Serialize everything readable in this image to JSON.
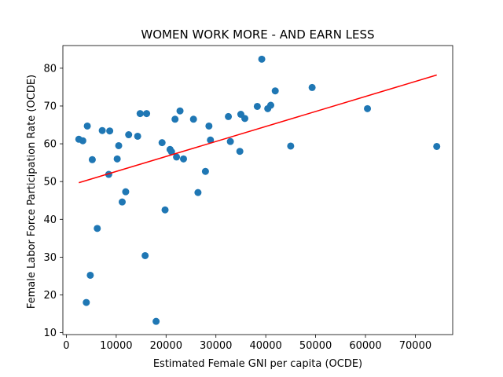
{
  "chart_data": {
    "type": "scatter",
    "title": "WOMEN WORK MORE - AND EARN LESS",
    "xlabel": "Estimated Female GNI per capita (OCDE)",
    "ylabel": "Female Labor Force Participation Rate (OCDE)",
    "xlim": [
      -700,
      77500
    ],
    "ylim": [
      9.5,
      86
    ],
    "xticks": [
      0,
      10000,
      20000,
      30000,
      40000,
      50000,
      60000,
      70000
    ],
    "yticks": [
      10,
      20,
      30,
      40,
      50,
      60,
      70,
      80
    ],
    "grid": false,
    "series": [
      {
        "type": "scatter",
        "color": "#1f77b4",
        "x": [
          2500,
          3300,
          4200,
          4800,
          5200,
          6200,
          7200,
          8500,
          8700,
          10200,
          10500,
          11200,
          11900,
          12500,
          14300,
          14800,
          15800,
          16100,
          18000,
          19200,
          19800,
          20800,
          21100,
          21800,
          22100,
          22800,
          23500,
          25500,
          26400,
          27900,
          28600,
          28900,
          32500,
          32900,
          34800,
          35000,
          35800,
          38300,
          39200,
          40400,
          41000,
          41900,
          45000,
          49300,
          60400,
          74300,
          4000
        ],
        "y": [
          61.2,
          60.8,
          64.7,
          25.2,
          55.8,
          37.6,
          63.5,
          51.9,
          63.4,
          56.0,
          59.5,
          44.6,
          47.3,
          62.4,
          62.0,
          68.0,
          30.4,
          68.0,
          13.0,
          60.3,
          42.5,
          58.5,
          57.9,
          66.5,
          56.5,
          68.7,
          56.0,
          66.5,
          47.1,
          52.7,
          64.7,
          61.0,
          67.2,
          60.6,
          58.0,
          67.8,
          66.7,
          69.9,
          82.4,
          69.3,
          70.2,
          74.0,
          59.4,
          74.9,
          69.3,
          59.3,
          18.0
        ]
      },
      {
        "type": "line",
        "name": "",
        "color": "#ff0000",
        "x": [
          2500,
          74300
        ],
        "y": [
          49.7,
          78.2
        ]
      }
    ]
  }
}
